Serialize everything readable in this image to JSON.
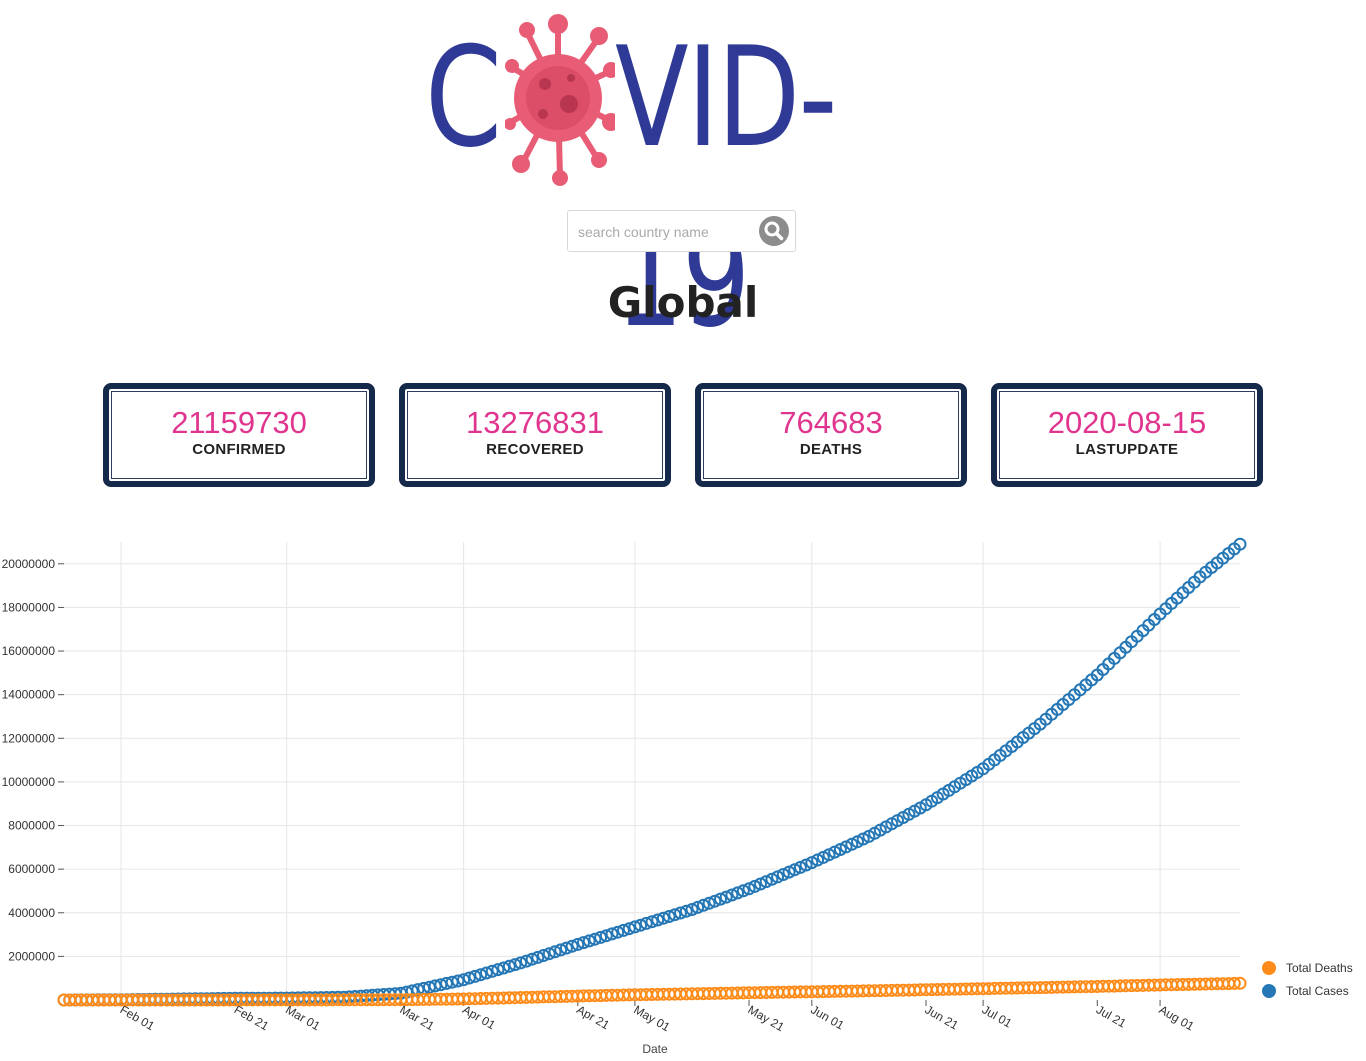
{
  "logo": {
    "prefix": "C",
    "suffix": "VID-19"
  },
  "search": {
    "placeholder": "search country name"
  },
  "page_title": "Global",
  "stats": [
    {
      "value": "21159730",
      "label": "CONFIRMED"
    },
    {
      "value": "13276831",
      "label": "RECOVERED"
    },
    {
      "value": "764683",
      "label": "DEATHS"
    },
    {
      "value": "2020-08-15",
      "label": "LASTUPDATE"
    }
  ],
  "colors": {
    "logo_text": "#2f3a96",
    "virus": "#e85d75",
    "stat_value": "#e0358e",
    "card_border": "#15294a",
    "deaths": "#ff8c1a",
    "cases": "#2577b5"
  },
  "icons": {
    "search": "search-icon",
    "virus": "virus-icon"
  },
  "chart_data": {
    "type": "scatter",
    "title": "",
    "xlabel": "Date",
    "ylabel": "",
    "x_start": "2020-01-22",
    "x_end": "2020-08-15",
    "xlim": [
      "2020-01-22",
      "2020-08-15"
    ],
    "ylim": [
      0,
      21000000
    ],
    "y_ticks": [
      2000000,
      4000000,
      6000000,
      8000000,
      10000000,
      12000000,
      14000000,
      16000000,
      18000000,
      20000000
    ],
    "y_tick_labels": [
      "2000000",
      "4000000",
      "6000000",
      "8000000",
      "10000000",
      "12000000",
      "14000000",
      "16000000",
      "18000000",
      "20000000"
    ],
    "x_ticks": [
      "2020-02-01",
      "2020-02-21",
      "2020-03-01",
      "2020-03-21",
      "2020-04-01",
      "2020-04-21",
      "2020-05-01",
      "2020-05-21",
      "2020-06-01",
      "2020-06-21",
      "2020-07-01",
      "2020-07-21",
      "2020-08-01"
    ],
    "x_tick_labels": [
      "Feb 01",
      "Feb 21",
      "Mar 01",
      "Mar 21",
      "Apr 01",
      "Apr 21",
      "May 01",
      "May 21",
      "Jun 01",
      "Jun 21",
      "Jul 01",
      "Jul 21",
      "Aug 01"
    ],
    "grid": true,
    "legend_position": "bottom-right",
    "series": [
      {
        "name": "Total Cases",
        "color": "#2577b5",
        "anchors": [
          [
            "2020-01-22",
            555
          ],
          [
            "2020-02-01",
            12000
          ],
          [
            "2020-02-21",
            78000
          ],
          [
            "2020-03-01",
            88000
          ],
          [
            "2020-03-11",
            126000
          ],
          [
            "2020-03-21",
            305000
          ],
          [
            "2020-04-01",
            930000
          ],
          [
            "2020-04-11",
            1700000
          ],
          [
            "2020-04-21",
            2550000
          ],
          [
            "2020-05-01",
            3350000
          ],
          [
            "2020-05-11",
            4150000
          ],
          [
            "2020-05-21",
            5100000
          ],
          [
            "2020-06-01",
            6300000
          ],
          [
            "2020-06-11",
            7500000
          ],
          [
            "2020-06-21",
            8950000
          ],
          [
            "2020-07-01",
            10600000
          ],
          [
            "2020-07-11",
            12650000
          ],
          [
            "2020-07-21",
            14900000
          ],
          [
            "2020-08-01",
            17700000
          ],
          [
            "2020-08-08",
            19400000
          ],
          [
            "2020-08-15",
            20900000
          ]
        ]
      },
      {
        "name": "Total Deaths",
        "color": "#ff8c1a",
        "anchors": [
          [
            "2020-01-22",
            17
          ],
          [
            "2020-02-01",
            259
          ],
          [
            "2020-02-21",
            2250
          ],
          [
            "2020-03-01",
            3000
          ],
          [
            "2020-03-21",
            13000
          ],
          [
            "2020-04-01",
            47000
          ],
          [
            "2020-04-21",
            180000
          ],
          [
            "2020-05-01",
            240000
          ],
          [
            "2020-05-21",
            330000
          ],
          [
            "2020-06-01",
            378000
          ],
          [
            "2020-06-21",
            470000
          ],
          [
            "2020-07-01",
            520000
          ],
          [
            "2020-07-21",
            620000
          ],
          [
            "2020-08-01",
            690000
          ],
          [
            "2020-08-15",
            764683
          ]
        ]
      }
    ]
  }
}
